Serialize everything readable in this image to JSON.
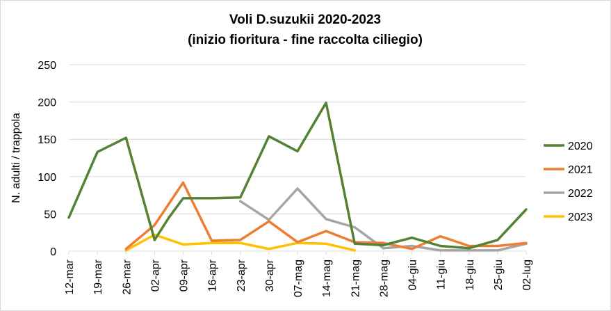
{
  "chart_data": {
    "type": "line",
    "title": "Voli D.suzukii 2020-2023",
    "subtitle": "(inizio fioritura - fine raccolta ciliegio)",
    "xlabel": "",
    "ylabel": "N. adulti / trappola",
    "ylim": [
      0,
      250
    ],
    "yticks": [
      "0",
      "50",
      "100",
      "150",
      "200",
      "250"
    ],
    "grid": true,
    "legend_position": "right",
    "categories": [
      "12-mar",
      "19-mar",
      "26-mar",
      "02-apr",
      "09-apr",
      "16-apr",
      "23-apr",
      "30-apr",
      "07-mag",
      "14-mag",
      "21-mag",
      "28-mag",
      "04-giu",
      "11-giu",
      "18-giu",
      "25-giu",
      "02-lug"
    ],
    "series": [
      {
        "name": "2020",
        "color": "#548235",
        "points": [
          {
            "x": 0,
            "y": 45
          },
          {
            "x": 1,
            "y": 133
          },
          {
            "x": 2,
            "y": 152
          },
          {
            "x": 3,
            "y": 15
          },
          {
            "x": 3.5,
            "y": 45
          },
          {
            "x": 4,
            "y": 71
          },
          {
            "x": 5,
            "y": 71
          },
          {
            "x": 6,
            "y": 72
          },
          {
            "x": 7,
            "y": 154
          },
          {
            "x": 8,
            "y": 134
          },
          {
            "x": 9,
            "y": 199
          },
          {
            "x": 10,
            "y": 10
          },
          {
            "x": 11,
            "y": 8
          },
          {
            "x": 12,
            "y": 18
          },
          {
            "x": 13,
            "y": 7
          },
          {
            "x": 14,
            "y": 4
          },
          {
            "x": 15,
            "y": 15
          },
          {
            "x": 16,
            "y": 56
          }
        ]
      },
      {
        "name": "2021",
        "color": "#ed7d31",
        "points": [
          {
            "x": 2,
            "y": 3
          },
          {
            "x": 3,
            "y": 35
          },
          {
            "x": 4,
            "y": 92
          },
          {
            "x": 5,
            "y": 14
          },
          {
            "x": 6,
            "y": 15
          },
          {
            "x": 7,
            "y": 40
          },
          {
            "x": 8,
            "y": 12
          },
          {
            "x": 9,
            "y": 27
          },
          {
            "x": 10,
            "y": 12
          },
          {
            "x": 11,
            "y": 11
          },
          {
            "x": 12,
            "y": 3
          },
          {
            "x": 13,
            "y": 20
          },
          {
            "x": 14,
            "y": 7
          },
          {
            "x": 15,
            "y": 7
          },
          {
            "x": 16,
            "y": 11
          }
        ]
      },
      {
        "name": "2022",
        "color": "#a5a5a5",
        "points": [
          {
            "x": 6,
            "y": 67
          },
          {
            "x": 7,
            "y": 42
          },
          {
            "x": 8,
            "y": 84
          },
          {
            "x": 9,
            "y": 43
          },
          {
            "x": 10,
            "y": 32
          },
          {
            "x": 11,
            "y": 4
          },
          {
            "x": 12,
            "y": 7
          },
          {
            "x": 13,
            "y": 1
          },
          {
            "x": 14,
            "y": 1
          },
          {
            "x": 15,
            "y": 1
          },
          {
            "x": 16,
            "y": 10
          }
        ]
      },
      {
        "name": "2023",
        "color": "#ffc000",
        "points": [
          {
            "x": 2,
            "y": 1
          },
          {
            "x": 3,
            "y": 22
          },
          {
            "x": 4,
            "y": 9
          },
          {
            "x": 5,
            "y": 11
          },
          {
            "x": 6,
            "y": 11
          },
          {
            "x": 7,
            "y": 3
          },
          {
            "x": 8,
            "y": 11
          },
          {
            "x": 9,
            "y": 10
          },
          {
            "x": 10,
            "y": 1
          }
        ]
      }
    ]
  }
}
